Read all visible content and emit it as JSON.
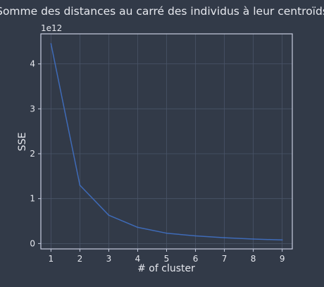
{
  "chart_data": {
    "type": "line",
    "title": "Somme des distances au carré des individus à leur centroïds",
    "xlabel": "# of cluster",
    "ylabel": "SSE",
    "y_offset_label": "1e12",
    "x": [
      1,
      2,
      3,
      4,
      5,
      6,
      7,
      8,
      9
    ],
    "y": [
      4.45,
      1.3,
      0.63,
      0.36,
      0.23,
      0.17,
      0.13,
      0.1,
      0.08
    ],
    "x_ticks": [
      "1",
      "2",
      "3",
      "4",
      "5",
      "6",
      "7",
      "8",
      "9"
    ],
    "y_ticks": [
      "0",
      "1",
      "2",
      "3",
      "4"
    ],
    "xlim": [
      0.65,
      9.35
    ],
    "ylim": [
      -0.12,
      4.67
    ],
    "grid": true,
    "colors": {
      "background": "#323a48",
      "line": "#3f6bb8",
      "grid": "#4a5468",
      "axes": "#c8cee0"
    }
  }
}
